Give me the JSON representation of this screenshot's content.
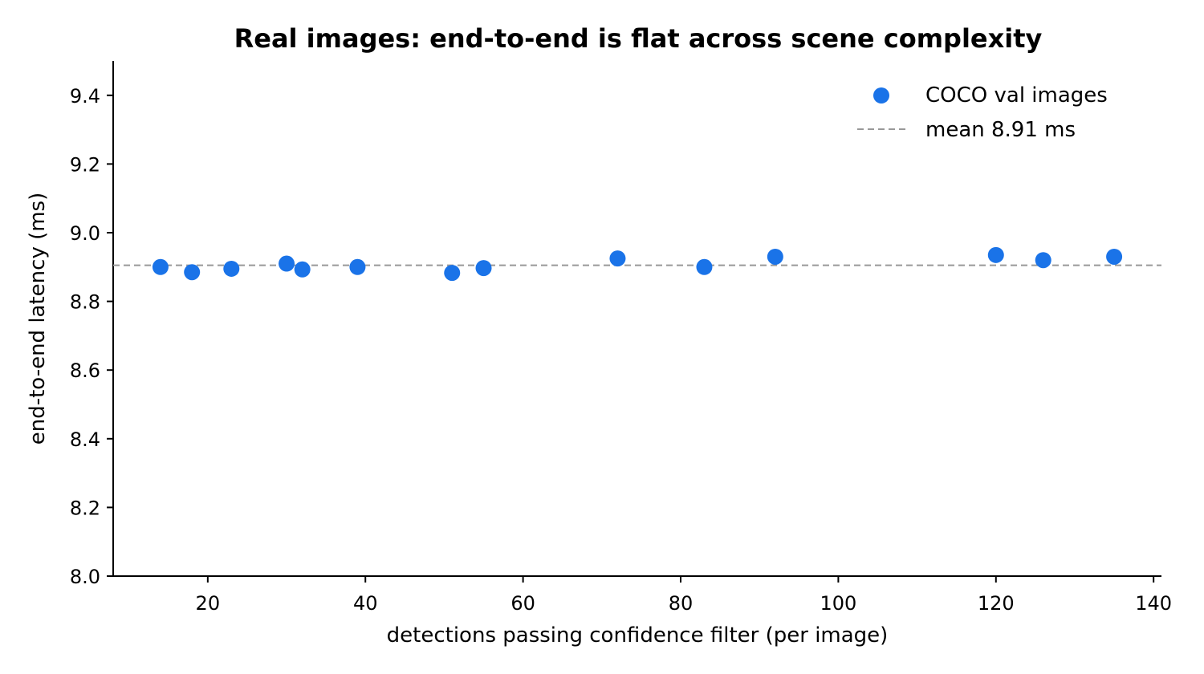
{
  "chart_data": {
    "type": "scatter",
    "title": "Real images: end-to-end is flat across scene complexity",
    "xlabel": "detections passing confidence filter (per image)",
    "ylabel": "end-to-end latency (ms)",
    "xlim": [
      8,
      141
    ],
    "ylim": [
      8.0,
      9.5
    ],
    "xticks": [
      20,
      40,
      60,
      80,
      100,
      120,
      140
    ],
    "xtick_labels": [
      "20",
      "40",
      "60",
      "80",
      "100",
      "120",
      "140"
    ],
    "yticks": [
      8.0,
      8.2,
      8.4,
      8.6,
      8.8,
      9.0,
      9.2,
      9.4
    ],
    "ytick_labels": [
      "8.0",
      "8.2",
      "8.4",
      "8.6",
      "8.8",
      "9.0",
      "9.2",
      "9.4"
    ],
    "grid": false,
    "legend_position": "top-right",
    "series": [
      {
        "name": "COCO val images",
        "color": "#1a73e8",
        "points": [
          {
            "x": 14,
            "y": 8.9
          },
          {
            "x": 18,
            "y": 8.885
          },
          {
            "x": 23,
            "y": 8.895
          },
          {
            "x": 30,
            "y": 8.91
          },
          {
            "x": 32,
            "y": 8.893
          },
          {
            "x": 39,
            "y": 8.9
          },
          {
            "x": 51,
            "y": 8.883
          },
          {
            "x": 55,
            "y": 8.897
          },
          {
            "x": 72,
            "y": 8.925
          },
          {
            "x": 83,
            "y": 8.9
          },
          {
            "x": 92,
            "y": 8.93
          },
          {
            "x": 120,
            "y": 8.935
          },
          {
            "x": 126,
            "y": 8.92
          },
          {
            "x": 135,
            "y": 8.93
          }
        ]
      }
    ],
    "reference_line": {
      "name": "mean 8.91 ms",
      "y": 8.905,
      "color": "#999999",
      "style": "dashed"
    }
  }
}
